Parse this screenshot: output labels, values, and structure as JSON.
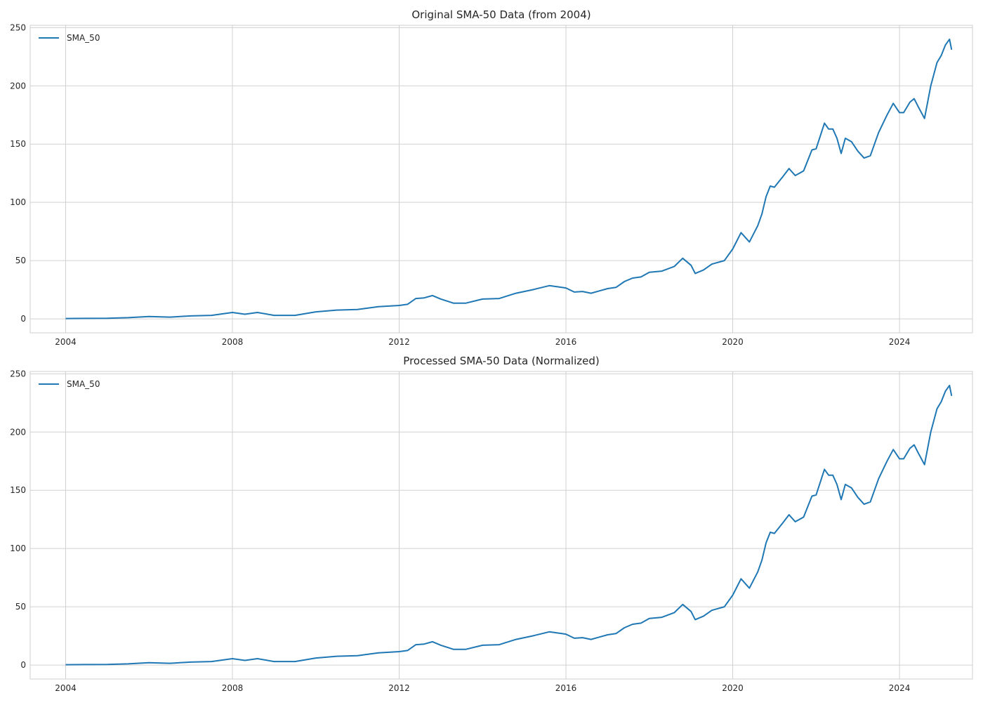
{
  "chart_data": [
    {
      "type": "line",
      "title": "Original SMA-50 Data (from 2004)",
      "xlabel": "",
      "ylabel": "",
      "xlim": [
        2003.15,
        2025.75
      ],
      "ylim": [
        -12,
        252
      ],
      "xticks": [
        2004,
        2008,
        2012,
        2016,
        2020,
        2024
      ],
      "yticks": [
        0,
        50,
        100,
        150,
        200,
        250
      ],
      "grid": true,
      "legend": "upper left",
      "series": [
        {
          "name": "SMA_50",
          "color": "#1f77b4",
          "x": [
            2004.0,
            2004.5,
            2005.0,
            2005.5,
            2006.0,
            2006.5,
            2007.0,
            2007.5,
            2008.0,
            2008.3,
            2008.6,
            2009.0,
            2009.5,
            2010.0,
            2010.5,
            2011.0,
            2011.5,
            2012.0,
            2012.2,
            2012.4,
            2012.6,
            2012.8,
            2013.0,
            2013.3,
            2013.6,
            2014.0,
            2014.4,
            2014.8,
            2015.2,
            2015.6,
            2015.9,
            2016.0,
            2016.2,
            2016.4,
            2016.6,
            2016.8,
            2017.0,
            2017.2,
            2017.4,
            2017.6,
            2017.8,
            2018.0,
            2018.3,
            2018.6,
            2018.8,
            2019.0,
            2019.1,
            2019.3,
            2019.5,
            2019.8,
            2020.0,
            2020.2,
            2020.4,
            2020.6,
            2020.7,
            2020.8,
            2020.9,
            2021.0,
            2021.2,
            2021.35,
            2021.5,
            2021.7,
            2021.9,
            2022.0,
            2022.2,
            2022.3,
            2022.4,
            2022.5,
            2022.6,
            2022.7,
            2022.85,
            2023.0,
            2023.15,
            2023.3,
            2023.5,
            2023.7,
            2023.85,
            2024.0,
            2024.1,
            2024.25,
            2024.35,
            2024.45,
            2024.6,
            2024.75,
            2024.9,
            2025.0,
            2025.1,
            2025.2,
            2025.25
          ],
          "y": [
            0.3,
            0.4,
            0.5,
            1.0,
            2.0,
            1.5,
            2.5,
            3.0,
            5.5,
            4.0,
            5.5,
            3.0,
            3.0,
            6.0,
            7.5,
            8.0,
            10.5,
            11.5,
            12.5,
            17.5,
            18.0,
            20.0,
            17.0,
            13.5,
            13.5,
            17.0,
            17.5,
            22.0,
            25.0,
            28.5,
            27.0,
            26.5,
            23.0,
            23.5,
            22.0,
            24.0,
            26.0,
            27.0,
            32.0,
            35.0,
            36.0,
            40.0,
            41.0,
            45.0,
            52.0,
            46.0,
            39.0,
            42.0,
            47.0,
            50.0,
            60.0,
            74.0,
            66.0,
            80.0,
            90.0,
            105.0,
            114.0,
            113.0,
            122.0,
            129.0,
            123.0,
            127.0,
            145.0,
            146.0,
            168.0,
            163.0,
            163.0,
            155.0,
            142.0,
            155.0,
            152.0,
            144.0,
            138.0,
            140.0,
            160.0,
            175.0,
            185.0,
            177.0,
            177.0,
            186.0,
            189.0,
            182.0,
            172.0,
            200.0,
            220.0,
            226.0,
            235.0,
            240.0,
            231.0
          ]
        }
      ]
    },
    {
      "type": "line",
      "title": "Processed SMA-50 Data (Normalized)",
      "xlabel": "",
      "ylabel": "",
      "xlim": [
        2003.15,
        2025.75
      ],
      "ylim": [
        -12,
        252
      ],
      "xticks": [
        2004,
        2008,
        2012,
        2016,
        2020,
        2024
      ],
      "yticks": [
        0,
        50,
        100,
        150,
        200,
        250
      ],
      "grid": true,
      "legend": "upper left",
      "series": [
        {
          "name": "SMA_50",
          "color": "#1f77b4",
          "x": [
            2004.0,
            2004.5,
            2005.0,
            2005.5,
            2006.0,
            2006.5,
            2007.0,
            2007.5,
            2008.0,
            2008.3,
            2008.6,
            2009.0,
            2009.5,
            2010.0,
            2010.5,
            2011.0,
            2011.5,
            2012.0,
            2012.2,
            2012.4,
            2012.6,
            2012.8,
            2013.0,
            2013.3,
            2013.6,
            2014.0,
            2014.4,
            2014.8,
            2015.2,
            2015.6,
            2015.9,
            2016.0,
            2016.2,
            2016.4,
            2016.6,
            2016.8,
            2017.0,
            2017.2,
            2017.4,
            2017.6,
            2017.8,
            2018.0,
            2018.3,
            2018.6,
            2018.8,
            2019.0,
            2019.1,
            2019.3,
            2019.5,
            2019.8,
            2020.0,
            2020.2,
            2020.4,
            2020.6,
            2020.7,
            2020.8,
            2020.9,
            2021.0,
            2021.2,
            2021.35,
            2021.5,
            2021.7,
            2021.9,
            2022.0,
            2022.2,
            2022.3,
            2022.4,
            2022.5,
            2022.6,
            2022.7,
            2022.85,
            2023.0,
            2023.15,
            2023.3,
            2023.5,
            2023.7,
            2023.85,
            2024.0,
            2024.1,
            2024.25,
            2024.35,
            2024.45,
            2024.6,
            2024.75,
            2024.9,
            2025.0,
            2025.1,
            2025.2,
            2025.25
          ],
          "y": [
            0.3,
            0.4,
            0.5,
            1.0,
            2.0,
            1.5,
            2.5,
            3.0,
            5.5,
            4.0,
            5.5,
            3.0,
            3.0,
            6.0,
            7.5,
            8.0,
            10.5,
            11.5,
            12.5,
            17.5,
            18.0,
            20.0,
            17.0,
            13.5,
            13.5,
            17.0,
            17.5,
            22.0,
            25.0,
            28.5,
            27.0,
            26.5,
            23.0,
            23.5,
            22.0,
            24.0,
            26.0,
            27.0,
            32.0,
            35.0,
            36.0,
            40.0,
            41.0,
            45.0,
            52.0,
            46.0,
            39.0,
            42.0,
            47.0,
            50.0,
            60.0,
            74.0,
            66.0,
            80.0,
            90.0,
            105.0,
            114.0,
            113.0,
            122.0,
            129.0,
            123.0,
            127.0,
            145.0,
            146.0,
            168.0,
            163.0,
            163.0,
            155.0,
            142.0,
            155.0,
            152.0,
            144.0,
            138.0,
            140.0,
            160.0,
            175.0,
            185.0,
            177.0,
            177.0,
            186.0,
            189.0,
            182.0,
            172.0,
            200.0,
            220.0,
            226.0,
            235.0,
            240.0,
            231.0
          ]
        }
      ]
    }
  ]
}
